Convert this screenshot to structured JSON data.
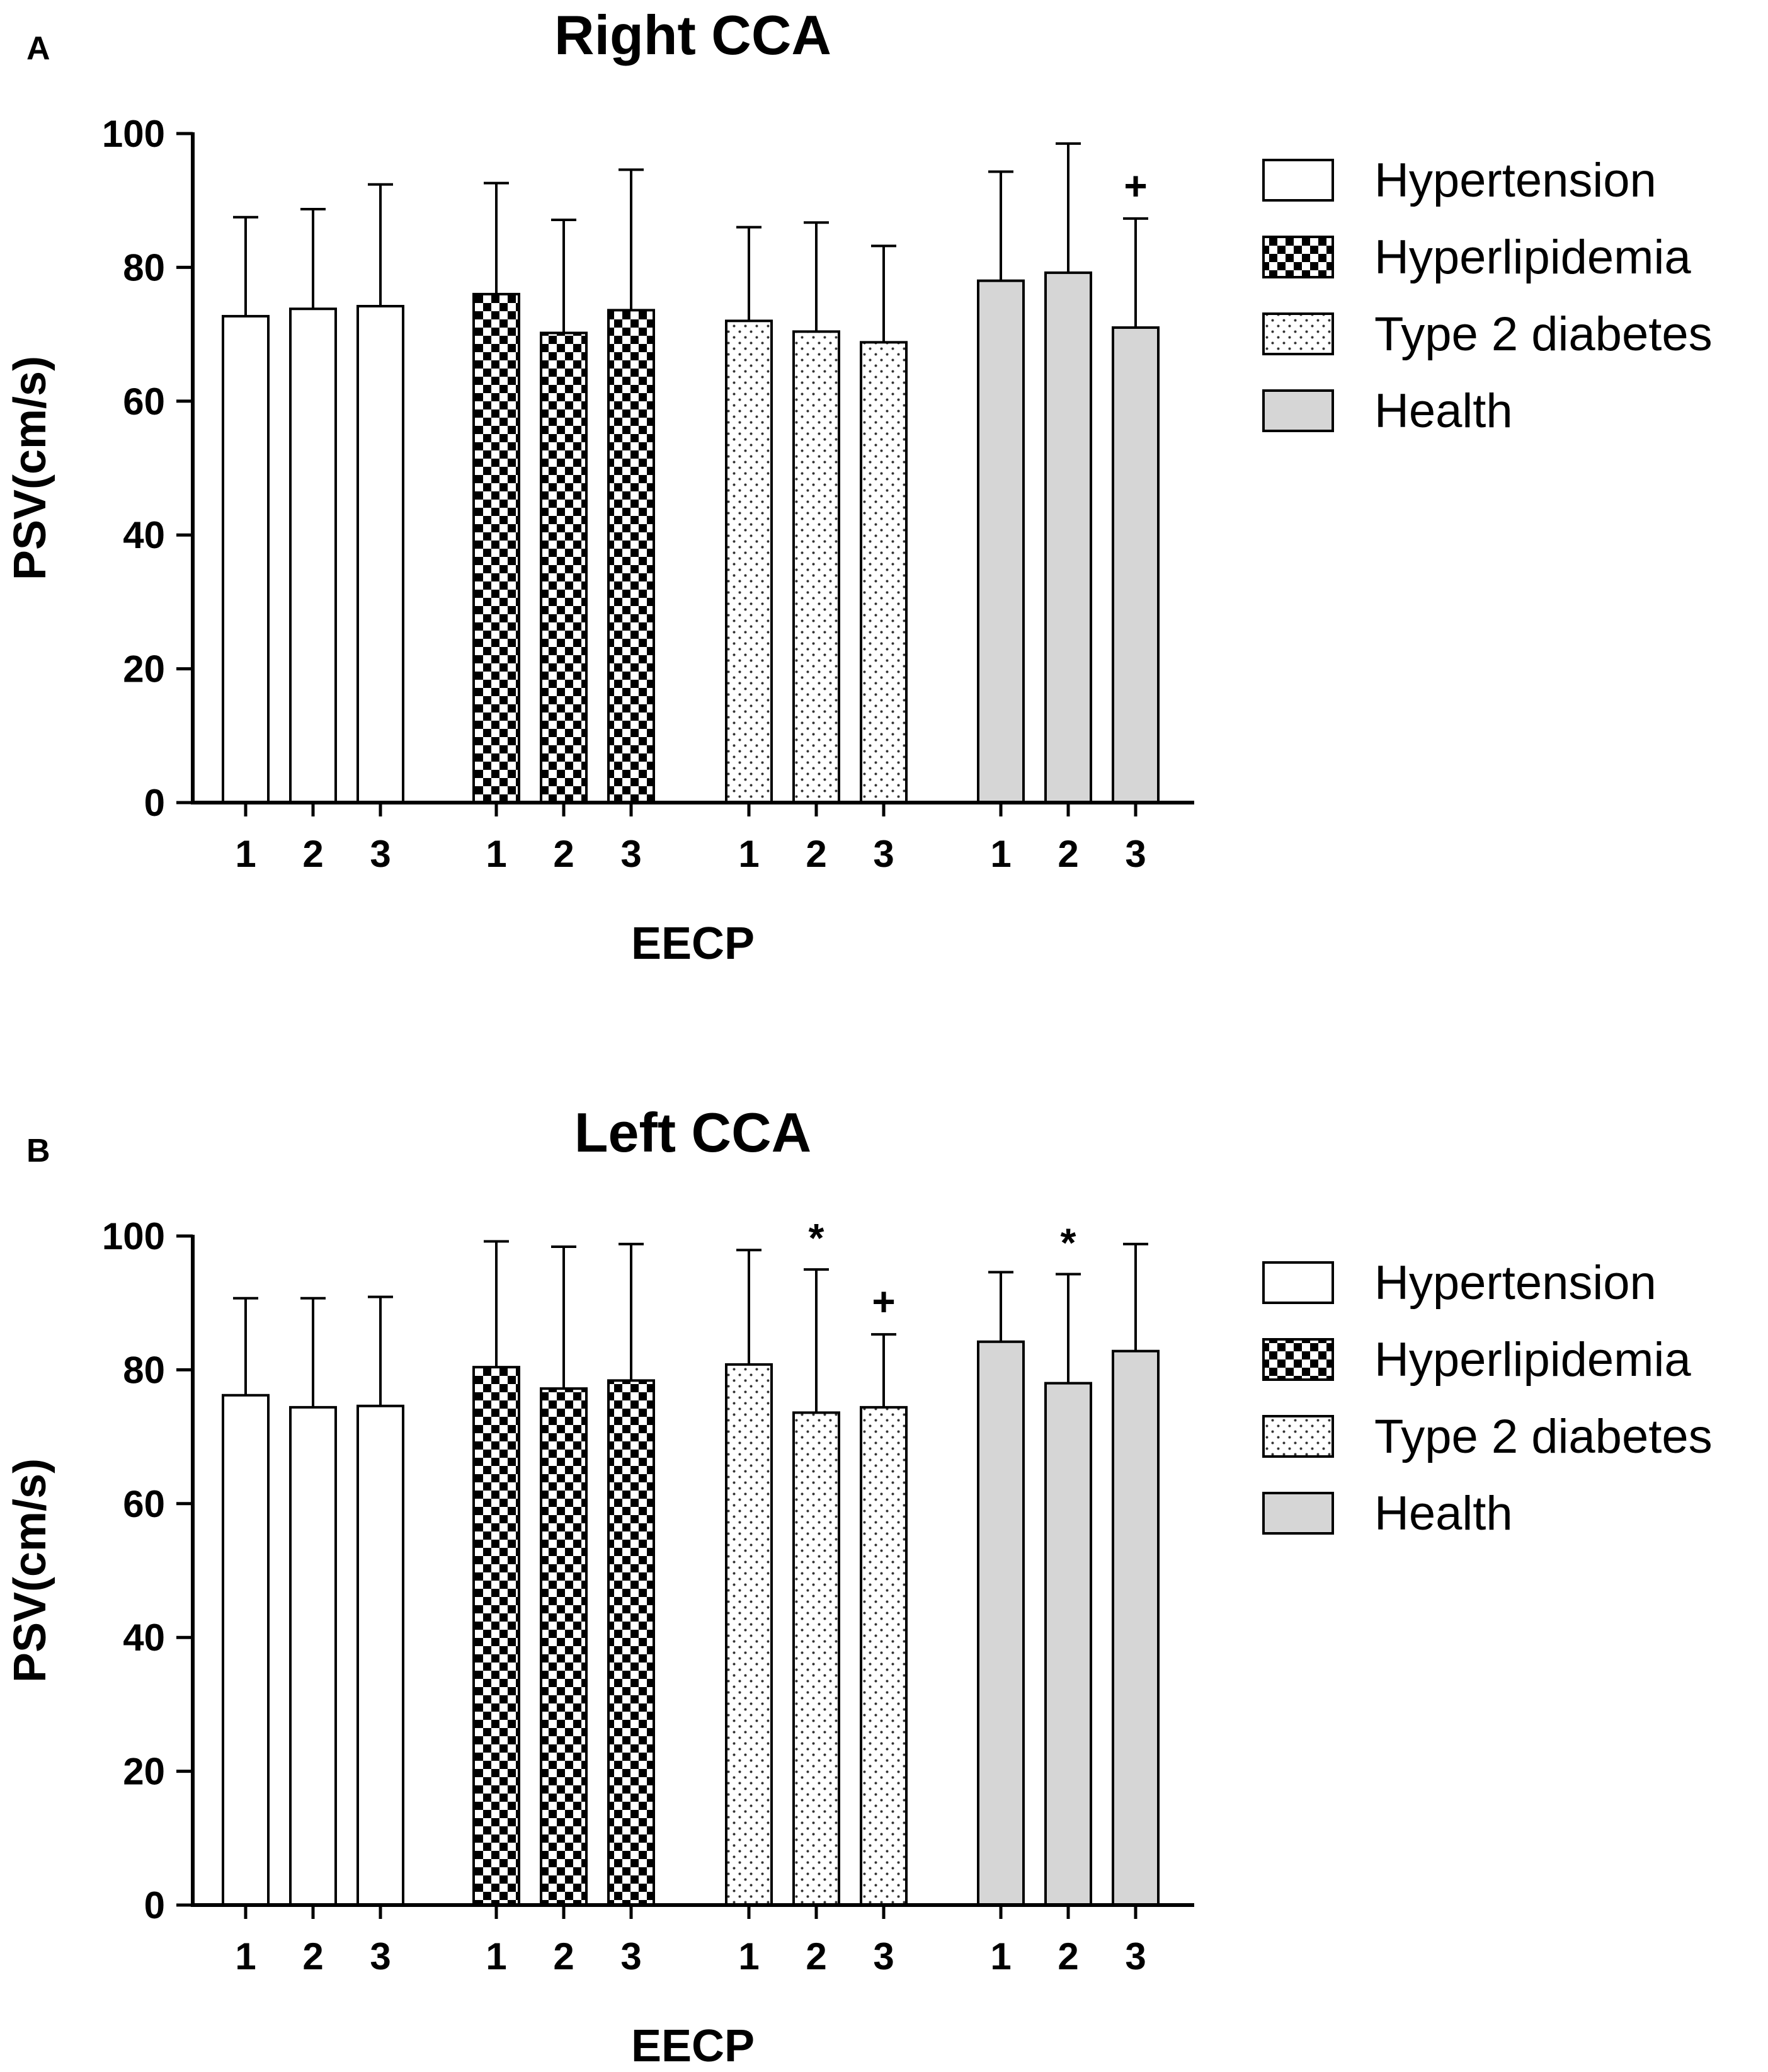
{
  "chart_data": [
    {
      "type": "bar",
      "panel": "A",
      "title": "Right CCA",
      "xlabel": "EECP",
      "ylabel": "PSV(cm/s)",
      "ylim": [
        0,
        100
      ],
      "yticks": [
        "0",
        "20",
        "40",
        "60",
        "80",
        "100"
      ],
      "categories": [
        "1",
        "2",
        "3"
      ],
      "series": [
        {
          "name": "Hypertension",
          "pattern": "white",
          "values": [
            72.7,
            73.8,
            74.2
          ],
          "errors": [
            14.8,
            14.9,
            18.2
          ],
          "annotations": [
            "",
            "",
            ""
          ]
        },
        {
          "name": "Hyperlipidemia",
          "pattern": "checker",
          "values": [
            76.0,
            70.2,
            73.6
          ],
          "errors": [
            16.6,
            16.9,
            21.0
          ],
          "annotations": [
            "",
            "",
            ""
          ]
        },
        {
          "name": "Type 2 diabetes",
          "pattern": "dots",
          "values": [
            72.0,
            70.4,
            68.8
          ],
          "errors": [
            14.0,
            16.3,
            14.4
          ],
          "annotations": [
            "",
            "",
            ""
          ]
        },
        {
          "name": "Health",
          "pattern": "gray",
          "values": [
            78.0,
            79.2,
            71.0
          ],
          "errors": [
            16.3,
            19.3,
            16.3
          ],
          "annotations": [
            "",
            "",
            "+"
          ]
        }
      ],
      "legend": "right"
    },
    {
      "type": "bar",
      "panel": "B",
      "title": "Left CCA",
      "xlabel": "EECP",
      "ylabel": "PSV(cm/s)",
      "ylim": [
        0,
        100
      ],
      "yticks": [
        "0",
        "20",
        "40",
        "60",
        "80",
        "100"
      ],
      "categories": [
        "1",
        "2",
        "3"
      ],
      "series": [
        {
          "name": "Hypertension",
          "pattern": "white",
          "values": [
            76.2,
            74.4,
            74.6
          ],
          "errors": [
            14.5,
            16.3,
            16.3
          ],
          "annotations": [
            "",
            "",
            ""
          ]
        },
        {
          "name": "Hyperlipidemia",
          "pattern": "checker",
          "values": [
            80.4,
            77.2,
            78.4
          ],
          "errors": [
            18.8,
            21.2,
            20.4
          ],
          "annotations": [
            "",
            "",
            ""
          ]
        },
        {
          "name": "Type 2 diabetes",
          "pattern": "dots",
          "values": [
            80.8,
            73.6,
            74.4
          ],
          "errors": [
            17.1,
            21.4,
            10.9
          ],
          "annotations": [
            "",
            "*",
            "+"
          ]
        },
        {
          "name": "Health",
          "pattern": "gray",
          "values": [
            84.2,
            78.0,
            82.8
          ],
          "errors": [
            10.4,
            16.3,
            16.0
          ],
          "annotations": [
            "",
            "*",
            ""
          ]
        }
      ],
      "legend": "right"
    }
  ]
}
